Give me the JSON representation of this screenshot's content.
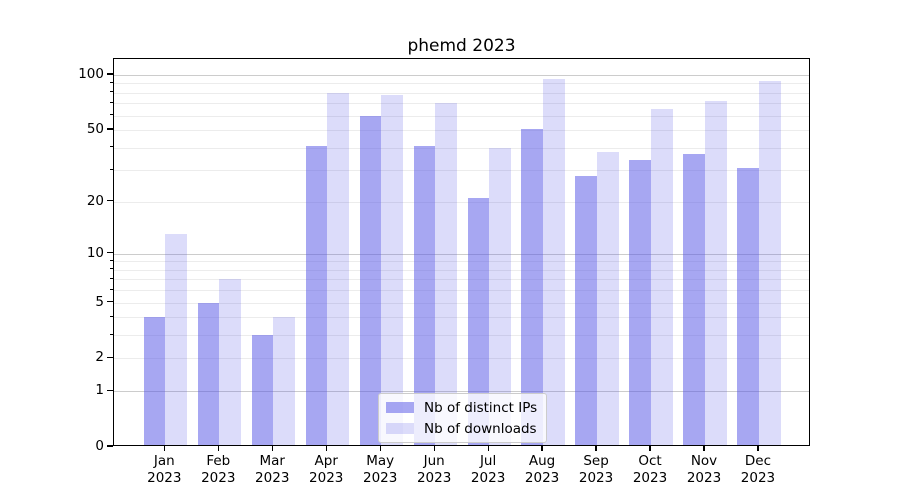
{
  "title": "phemd 2023",
  "chart_data": {
    "type": "bar",
    "title": "phemd 2023",
    "months": [
      "Jan",
      "Feb",
      "Mar",
      "Apr",
      "May",
      "Jun",
      "Jul",
      "Aug",
      "Sep",
      "Oct",
      "Nov",
      "Dec"
    ],
    "year": "2023",
    "categories": [
      "Jan 2023",
      "Feb 2023",
      "Mar 2023",
      "Apr 2023",
      "May 2023",
      "Jun 2023",
      "Jul 2023",
      "Aug 2023",
      "Sep 2023",
      "Oct 2023",
      "Nov 2023",
      "Dec 2023"
    ],
    "series": [
      {
        "name": "Nb of distinct IPs",
        "color": "#5050e6",
        "alpha": 0.5,
        "values": [
          4,
          5,
          3,
          41,
          60,
          41,
          21,
          51,
          28,
          34,
          37,
          31
        ]
      },
      {
        "name": "Nb of downloads",
        "color": "#5050e6",
        "alpha": 0.2,
        "values": [
          13,
          7,
          4,
          80,
          78,
          70,
          40,
          95,
          38,
          65,
          72,
          93
        ]
      }
    ],
    "y_scale": "log1p",
    "y_tick_values": [
      0,
      1,
      2,
      5,
      10,
      20,
      50,
      100
    ],
    "y_major_grid_values": [
      1,
      10,
      100
    ],
    "y_minor_grid_values": [
      2,
      3,
      4,
      5,
      6,
      7,
      8,
      9,
      20,
      30,
      40,
      50,
      60,
      70,
      80,
      90
    ],
    "ylim": [
      0,
      122
    ],
    "xlabel": "",
    "ylabel": "",
    "grid": "horizontal major+minor",
    "legend": {
      "position": "lower center",
      "entries": [
        "Nb of distinct IPs",
        "Nb of downloads"
      ]
    }
  },
  "colors": {
    "series_base": "#5050e6",
    "major_grid": "#cccccc",
    "minor_grid": "#ececec",
    "spine": "#000000",
    "background": "#ffffff"
  }
}
